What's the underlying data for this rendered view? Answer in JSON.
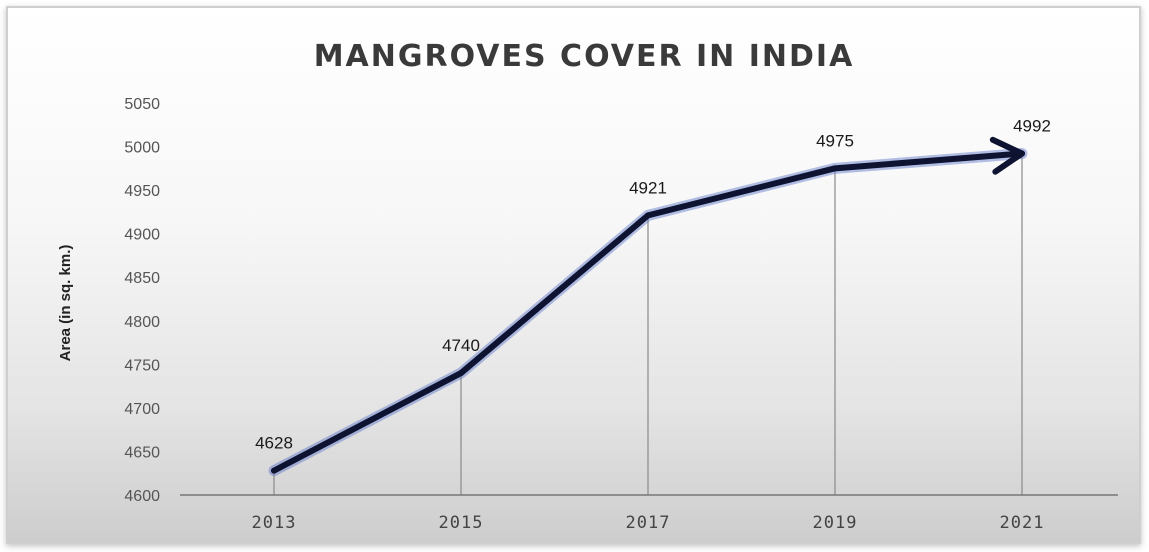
{
  "chart_data": {
    "type": "line",
    "title": "MANGROVES COVER IN INDIA",
    "xlabel": "",
    "ylabel": "Area (in sq. km.)",
    "categories": [
      "2013",
      "2015",
      "2017",
      "2019",
      "2021"
    ],
    "series": [
      {
        "values": [
          4628,
          4740,
          4921,
          4975,
          4992
        ]
      }
    ],
    "ylim": [
      4600,
      5050
    ],
    "yticks": [
      "4600",
      "4650",
      "4700",
      "4750",
      "4800",
      "4850",
      "4900",
      "4950",
      "5000",
      "5050"
    ],
    "data_labels": [
      "4628",
      "4740",
      "4921",
      "4975",
      "4992"
    ],
    "grid": false,
    "drop_lines": true,
    "arrow_end": true,
    "legend": "none",
    "colors": {
      "line": "#0d1330",
      "line_glow": "#5b74c9",
      "drop_line": "#8a8a8a",
      "axis": "#777777"
    }
  }
}
